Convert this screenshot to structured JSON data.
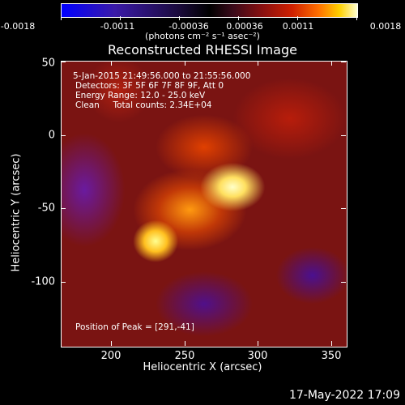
{
  "colorbar": {
    "ticks": [
      "-0.0018",
      "-0.0011",
      "-0.00036",
      "0.00036",
      "0.0011",
      "0.0018"
    ],
    "units": "(photons cm⁻² s⁻¹ asec⁻²)"
  },
  "title": "Reconstructed RHESSI Image",
  "annotations": {
    "time_range": "5-Jan-2015 21:49:56.000 to 21:55:56.000",
    "detectors": "Detectors: 3F 5F 6F 7F 8F 9F, Att 0",
    "energy": "Energy Range: 12.0 - 25.0 keV",
    "clean": "Clean     Total counts: 2.34E+04",
    "peak": "Position of Peak = [291,-41]"
  },
  "axes": {
    "x_title": "Heliocentric X (arcsec)",
    "y_title": "Heliocentric Y (arcsec)",
    "x_ticks": [
      "200",
      "250",
      "300",
      "350"
    ],
    "y_ticks": [
      "50",
      "0",
      "-50",
      "-100"
    ]
  },
  "date_stamp": "17-May-2022 17:09",
  "colors": {
    "background": "#000000",
    "peak": "#ffffc8"
  }
}
